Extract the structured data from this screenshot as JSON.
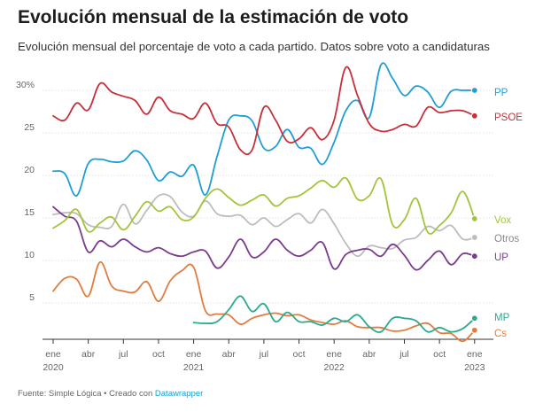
{
  "title": "Evolución mensual de la estimación de voto",
  "subtitle": "Evolución mensual del porcentaje de voto a cada partido. Datos sobre voto a candidaturas",
  "footer": {
    "source": "Fuente: Simple Lógica",
    "separator": " • ",
    "created_prefix": "Creado con ",
    "tool": "Datawrapper"
  },
  "chart_data": {
    "type": "line",
    "title": "Evolución mensual de la estimación de voto",
    "xlabel": "",
    "ylabel": "",
    "ylim": [
      0,
      32
    ],
    "x_unit": "months since Jan 2020",
    "xlim": [
      0,
      37
    ],
    "grid": true,
    "legend": "right, labels at line ends",
    "y_ticks": [
      {
        "value": 30,
        "label": "30%"
      },
      {
        "value": 25,
        "label": "25"
      },
      {
        "value": 20,
        "label": "20"
      },
      {
        "value": 15,
        "label": "15"
      },
      {
        "value": 10,
        "label": "10"
      },
      {
        "value": 5,
        "label": "5"
      }
    ],
    "x_ticks": [
      {
        "month": 0,
        "label": "ene",
        "sub": "2020"
      },
      {
        "month": 3,
        "label": "abr",
        "sub": ""
      },
      {
        "month": 6,
        "label": "jul",
        "sub": ""
      },
      {
        "month": 9,
        "label": "oct",
        "sub": ""
      },
      {
        "month": 12,
        "label": "ene",
        "sub": "2021"
      },
      {
        "month": 15,
        "label": "abr",
        "sub": ""
      },
      {
        "month": 18,
        "label": "jul",
        "sub": ""
      },
      {
        "month": 21,
        "label": "oct",
        "sub": ""
      },
      {
        "month": 24,
        "label": "ene",
        "sub": "2022"
      },
      {
        "month": 27,
        "label": "abr",
        "sub": ""
      },
      {
        "month": 30,
        "label": "jul",
        "sub": ""
      },
      {
        "month": 33,
        "label": "oct",
        "sub": ""
      },
      {
        "month": 36,
        "label": "ene",
        "sub": "2023"
      }
    ],
    "series": [
      {
        "name": "Otros",
        "color": "#bdbdbd",
        "x": [
          0,
          1,
          2,
          3,
          4,
          5,
          6,
          7,
          8,
          9,
          10,
          11,
          12,
          13,
          14,
          15,
          16,
          17,
          18,
          19,
          20,
          21,
          22,
          23,
          24,
          25,
          26,
          27,
          28,
          29,
          30,
          31,
          32,
          33,
          34,
          35,
          36
        ],
        "values": [
          15.4,
          15.6,
          15.5,
          14.2,
          13.9,
          14.0,
          16.6,
          14.3,
          15.9,
          17.6,
          17.5,
          15.7,
          15.2,
          17.0,
          15.5,
          15.2,
          15.3,
          14.2,
          15.0,
          14.0,
          14.8,
          15.5,
          14.4,
          16.0,
          14.3,
          12.0,
          10.5,
          11.7,
          11.5,
          11.4,
          12.4,
          12.7,
          14.0,
          13.5,
          14.1,
          12.5,
          12.7
        ]
      },
      {
        "name": "Cs",
        "color": "#e07d3e",
        "x": [
          0,
          1,
          2,
          3,
          4,
          5,
          6,
          7,
          8,
          9,
          10,
          11,
          12,
          13,
          14,
          15,
          16,
          17,
          18,
          19,
          20,
          21,
          22,
          23,
          24,
          25,
          26,
          27,
          28,
          29,
          30,
          31,
          32,
          33,
          34,
          35,
          36
        ],
        "values": [
          6.4,
          7.9,
          7.8,
          5.8,
          9.8,
          7.0,
          6.4,
          6.3,
          7.5,
          5.2,
          7.6,
          8.8,
          9.2,
          4.1,
          3.7,
          3.6,
          2.5,
          3.2,
          3.6,
          3.8,
          3.5,
          3.6,
          3.0,
          2.7,
          2.5,
          2.9,
          2.2,
          2.1,
          2.1,
          1.7,
          1.8,
          2.3,
          2.6,
          1.5,
          1.4,
          0.5,
          1.8
        ]
      },
      {
        "name": "MP",
        "color": "#2bab8d",
        "x": [
          12,
          13,
          14,
          15,
          16,
          17,
          18,
          19,
          20,
          21,
          22,
          23,
          24,
          25,
          26,
          27,
          28,
          29,
          30,
          31,
          32,
          33,
          34,
          35,
          36
        ],
        "values": [
          2.7,
          2.6,
          2.8,
          4.2,
          5.8,
          4.0,
          4.9,
          2.8,
          3.9,
          2.8,
          2.8,
          2.4,
          3.2,
          2.8,
          3.6,
          2.2,
          1.6,
          3.2,
          3.2,
          2.9,
          1.6,
          2.1,
          1.6,
          2.0,
          3.2
        ]
      },
      {
        "name": "UP",
        "color": "#7a3c8c",
        "x": [
          0,
          1,
          2,
          3,
          4,
          5,
          6,
          7,
          8,
          9,
          10,
          11,
          12,
          13,
          14,
          15,
          16,
          17,
          18,
          19,
          20,
          21,
          22,
          23,
          24,
          25,
          26,
          27,
          28,
          29,
          30,
          31,
          32,
          33,
          34,
          35,
          36
        ],
        "values": [
          16.3,
          15.2,
          14.6,
          11.0,
          12.3,
          11.6,
          12.5,
          11.6,
          11.0,
          11.5,
          10.8,
          10.5,
          11.0,
          11.1,
          9.1,
          10.4,
          12.5,
          10.4,
          11.0,
          12.5,
          11.2,
          10.5,
          11.2,
          12.1,
          9.0,
          10.7,
          11.2,
          11.3,
          10.5,
          11.9,
          10.6,
          8.9,
          10.0,
          11.1,
          9.5,
          10.8,
          10.5
        ]
      },
      {
        "name": "Vox",
        "color": "#a3c43c",
        "x": [
          0,
          1,
          2,
          3,
          4,
          5,
          6,
          7,
          8,
          9,
          10,
          11,
          12,
          13,
          14,
          15,
          16,
          17,
          18,
          19,
          20,
          21,
          22,
          23,
          24,
          25,
          26,
          27,
          28,
          29,
          30,
          31,
          32,
          33,
          34,
          35,
          36
        ],
        "values": [
          13.8,
          14.7,
          16.0,
          13.4,
          14.4,
          15.1,
          13.6,
          15.2,
          16.9,
          15.8,
          16.3,
          14.8,
          15.1,
          17.3,
          18.4,
          17.4,
          16.5,
          17.1,
          17.7,
          16.4,
          17.3,
          17.6,
          18.5,
          19.4,
          18.6,
          19.7,
          17.2,
          17.6,
          19.6,
          14.2,
          14.8,
          17.3,
          13.3,
          14.1,
          15.6,
          18.1,
          14.9
        ]
      },
      {
        "name": "PP",
        "color": "#1f9ed6",
        "x": [
          0,
          1,
          2,
          3,
          4,
          5,
          6,
          7,
          8,
          9,
          10,
          11,
          12,
          13,
          14,
          15,
          16,
          17,
          18,
          19,
          20,
          21,
          22,
          23,
          24,
          25,
          26,
          27,
          28,
          29,
          30,
          31,
          32,
          33,
          34,
          35,
          36
        ],
        "values": [
          20.5,
          20.2,
          17.6,
          21.4,
          21.9,
          21.6,
          21.7,
          22.9,
          21.8,
          19.4,
          20.4,
          19.9,
          21.2,
          17.7,
          22.2,
          26.5,
          27.0,
          26.4,
          23.2,
          23.4,
          25.4,
          23.3,
          23.2,
          21.3,
          23.9,
          27.6,
          28.8,
          26.8,
          33.0,
          31.4,
          29.4,
          30.5,
          29.8,
          28.0,
          29.9,
          30.0,
          30.0
        ]
      },
      {
        "name": "PSOE",
        "color": "#c7303a",
        "x": [
          0,
          1,
          2,
          3,
          4,
          5,
          6,
          7,
          8,
          9,
          10,
          11,
          12,
          13,
          14,
          15,
          16,
          17,
          18,
          19,
          20,
          21,
          22,
          23,
          24,
          25,
          26,
          27,
          28,
          29,
          30,
          31,
          32,
          33,
          34,
          35,
          36
        ],
        "values": [
          27.0,
          26.5,
          28.5,
          27.7,
          30.8,
          29.8,
          29.3,
          28.8,
          27.2,
          29.2,
          27.6,
          27.2,
          26.7,
          28.5,
          26.1,
          25.7,
          23.0,
          23.0,
          28.0,
          26.5,
          24.0,
          24.3,
          25.6,
          24.2,
          26.5,
          32.7,
          29.4,
          26.1,
          25.2,
          25.4,
          26.0,
          25.8,
          28.0,
          27.4,
          27.6,
          27.6,
          27.0
        ]
      }
    ]
  }
}
